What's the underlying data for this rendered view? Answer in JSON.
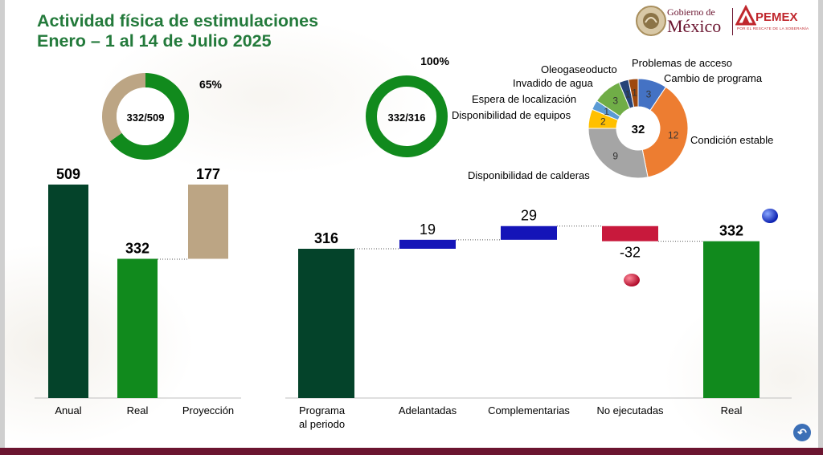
{
  "header": {
    "title_line1": "Actividad física de estimulaciones",
    "title_line2": "Enero – 1 al 14 de Julio 2025"
  },
  "logos": {
    "gobierno_line1": "Gobierno de",
    "gobierno_line2": "México",
    "pemex": "PEMEX",
    "pemex_tagline": "POR EL RESCATE DE LA SOBERANÍA"
  },
  "colors": {
    "dark_green": "#04432a",
    "green": "#118a1d",
    "tan": "#bca584",
    "blue": "#1414b8",
    "red": "#c8193c",
    "brand_green": "#237a3b",
    "brand_maroon": "#6b1530"
  },
  "chart_data": [
    {
      "type": "pie",
      "subtype": "donut",
      "center_label": "332/509",
      "percent_label": "65%",
      "slices": [
        {
          "name": "Real",
          "value": 332,
          "color": "#118a1d"
        },
        {
          "name": "Proyección",
          "value": 177,
          "color": "#bca584"
        }
      ]
    },
    {
      "type": "bar",
      "categories": [
        "Anual",
        "Real",
        "Proyección"
      ],
      "values": [
        509,
        332,
        177
      ],
      "stacked_base": [
        0,
        0,
        332
      ],
      "labels": [
        "509",
        "332",
        "177"
      ],
      "colors": [
        "#04432a",
        "#118a1d",
        "#bca584"
      ],
      "ylim": [
        0,
        509
      ]
    },
    {
      "type": "pie",
      "subtype": "donut",
      "center_label": "332/316",
      "percent_label": "100%",
      "slices": [
        {
          "name": "Real",
          "value": 332,
          "color": "#118a1d"
        }
      ]
    },
    {
      "type": "bar",
      "subtype": "waterfall",
      "categories": [
        "Programa al periodo",
        "Adelantadas",
        "Complementarias",
        "No ejecutadas",
        "Real"
      ],
      "category_lines": [
        [
          "Programa",
          "al periodo"
        ],
        [
          "Adelantadas"
        ],
        [
          "Complementarias"
        ],
        [
          "No ejecutadas"
        ],
        [
          "Real"
        ]
      ],
      "values": [
        316,
        19,
        29,
        -32,
        332
      ],
      "labels": [
        "316",
        "19",
        "29",
        "-32",
        "332"
      ],
      "colors": [
        "#04432a",
        "#1414b8",
        "#1414b8",
        "#c8193c",
        "#118a1d"
      ],
      "indicators": [
        {
          "category": "No ejecutadas",
          "color": "red"
        },
        {
          "category": "Real",
          "color": "blue"
        }
      ]
    },
    {
      "type": "pie",
      "subtype": "donut",
      "center_label": "32",
      "slices": [
        {
          "name": "Problemas de acceso",
          "value": 3,
          "color": "#4472c4"
        },
        {
          "name": "Condición estable",
          "value": 12,
          "color": "#ed7d31"
        },
        {
          "name": "Disponibilidad de calderas",
          "value": 9,
          "color": "#a5a5a5"
        },
        {
          "name": "Disponibilidad de equipos",
          "value": 2,
          "color": "#ffc000"
        },
        {
          "name": "Espera de localización",
          "value": 1,
          "color": "#5b9bd5"
        },
        {
          "name": "Invadido de agua",
          "value": 3,
          "color": "#70ad47"
        },
        {
          "name": "Oleogaseoducto",
          "value": 1,
          "color": "#264478"
        },
        {
          "name": "Cambio de programa",
          "value": 1,
          "color": "#9e480e"
        }
      ]
    }
  ]
}
